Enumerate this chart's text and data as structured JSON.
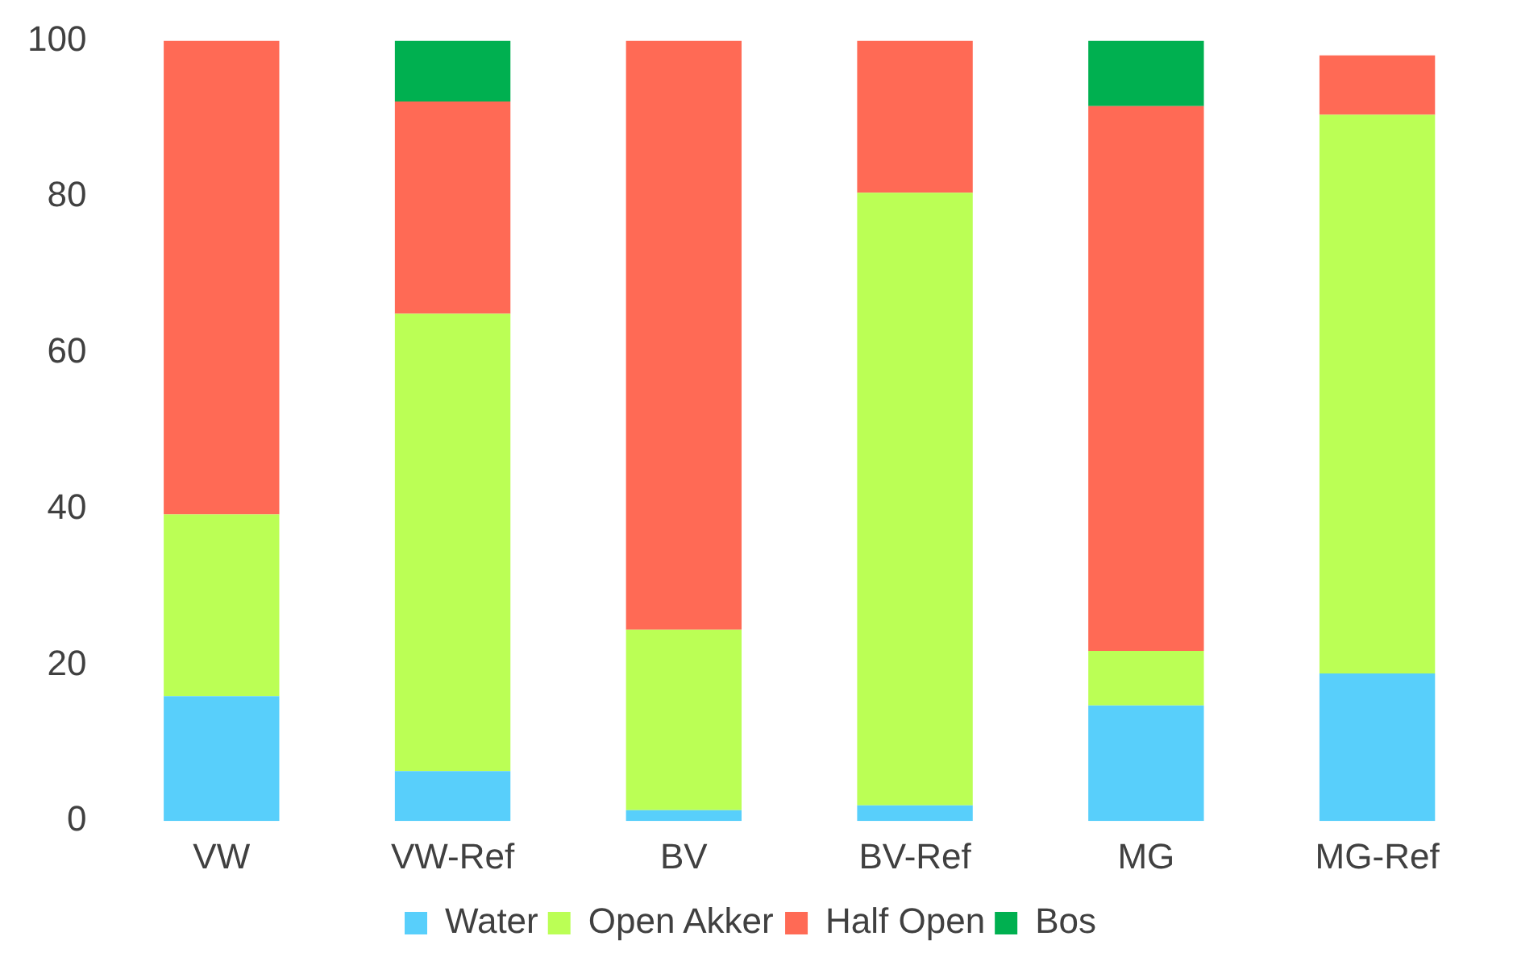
{
  "chart_data": {
    "type": "bar",
    "stacked": true,
    "categories": [
      "VW",
      "VW-Ref",
      "BV",
      "BV-Ref",
      "MG",
      "MG-Ref"
    ],
    "series": [
      {
        "name": "Water",
        "color": "#58cffb",
        "values": [
          16,
          6.4,
          1.4,
          2,
          14.8,
          18.9
        ]
      },
      {
        "name": "Open Akker",
        "color": "#bbff55",
        "values": [
          23.3,
          58.6,
          23.1,
          78.5,
          7,
          71.6
        ]
      },
      {
        "name": "Half Open",
        "color": "#ff6a55",
        "values": [
          60.7,
          27.2,
          75.5,
          19.5,
          69.8,
          7.6
        ]
      },
      {
        "name": "Bos",
        "color": "#00b050",
        "values": [
          0,
          7.8,
          0,
          0,
          8.4,
          0
        ]
      }
    ],
    "ylim": [
      0,
      100
    ],
    "yticks": [
      0,
      20,
      40,
      60,
      80,
      100
    ],
    "grid": false,
    "legend": "bottom"
  }
}
